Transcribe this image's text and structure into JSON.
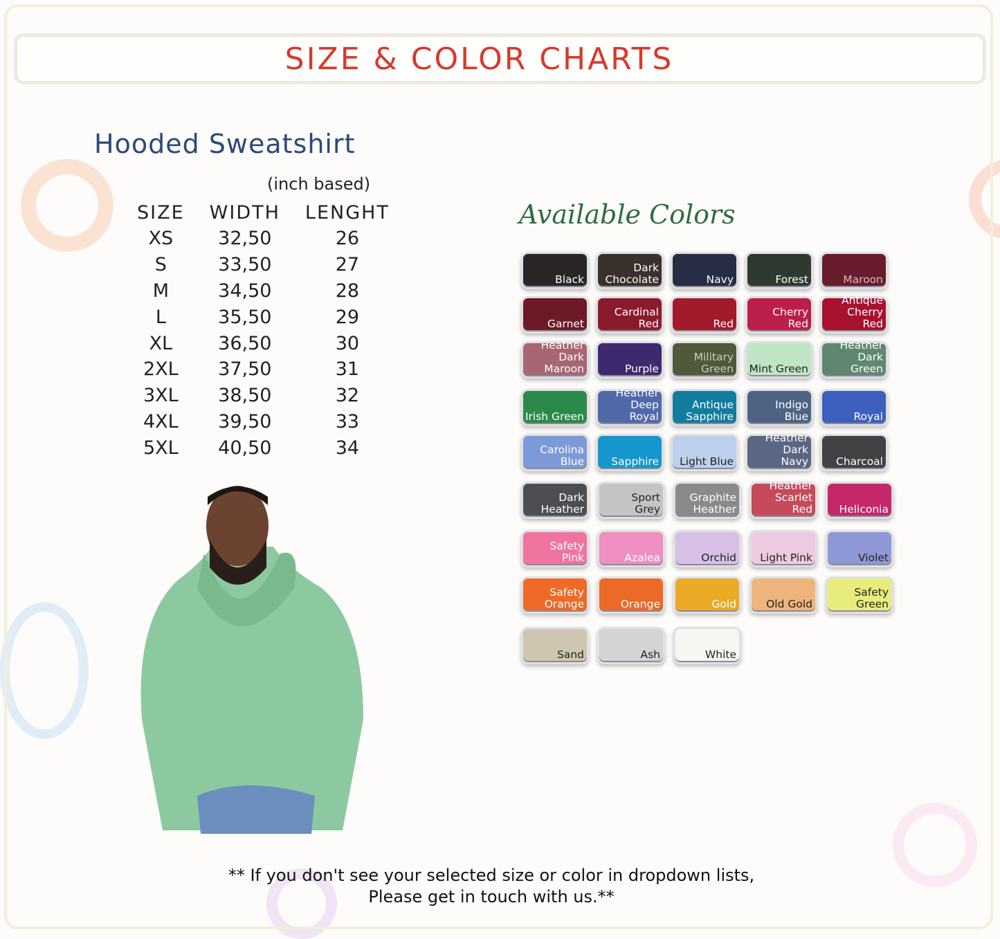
{
  "header": {
    "title": "SIZE & COLOR CHARTS"
  },
  "product": {
    "name": "Hooded Sweatshirt",
    "unit_note": "(inch based)"
  },
  "size_table": {
    "columns": [
      "SIZE",
      "WIDTH",
      "LENGHT"
    ],
    "rows": [
      [
        "XS",
        "32,50",
        "26"
      ],
      [
        "S",
        "33,50",
        "27"
      ],
      [
        "M",
        "34,50",
        "28"
      ],
      [
        "L",
        "35,50",
        "29"
      ],
      [
        "XL",
        "36,50",
        "30"
      ],
      [
        "2XL",
        "37,50",
        "31"
      ],
      [
        "3XL",
        "38,50",
        "32"
      ],
      [
        "4XL",
        "39,50",
        "33"
      ],
      [
        "5XL",
        "40,50",
        "34"
      ]
    ]
  },
  "colors_heading": "Available Colors",
  "colors": [
    {
      "label": "Black",
      "hex": "#2a2527",
      "text": "#fff"
    },
    {
      "label": "Dark\nChocolate",
      "hex": "#3a302c",
      "text": "#fff"
    },
    {
      "label": "Navy",
      "hex": "#262d44",
      "text": "#fff"
    },
    {
      "label": "Forest",
      "hex": "#2e3a30",
      "text": "#fff"
    },
    {
      "label": "Maroon",
      "hex": "#6a1c2c",
      "text": "#d8b8c0"
    },
    {
      "label": "Garnet",
      "hex": "#6e1a26",
      "text": "#fff"
    },
    {
      "label": "Cardinal Red",
      "hex": "#8a1b2d",
      "text": "#fff"
    },
    {
      "label": "Red",
      "hex": "#a11b2d",
      "text": "#fff"
    },
    {
      "label": "Cherry Red",
      "hex": "#bb1e48",
      "text": "#fff"
    },
    {
      "label": "Antique\nCherry Red",
      "hex": "#a8122f",
      "text": "#fff"
    },
    {
      "label": "Heather Dark\nMaroon",
      "hex": "#a86572",
      "text": "#fff"
    },
    {
      "label": "Purple",
      "hex": "#3d2a6e",
      "text": "#fff"
    },
    {
      "label": "Military Green",
      "hex": "#4e5a3a",
      "text": "#c9cfbd"
    },
    {
      "label": "Mint Green",
      "hex": "#bfe6c4",
      "text": "#222"
    },
    {
      "label": "Heather Dark\nGreen",
      "hex": "#5f8770",
      "text": "#fff"
    },
    {
      "label": "Irish Green",
      "hex": "#2b8a48",
      "text": "#fff"
    },
    {
      "label": "Heather\nDeep Royal",
      "hex": "#5069a8",
      "text": "#fff"
    },
    {
      "label": "Antique\nSapphire",
      "hex": "#117d9e",
      "text": "#fff"
    },
    {
      "label": "Indigo Blue",
      "hex": "#4e6384",
      "text": "#fff"
    },
    {
      "label": "Royal",
      "hex": "#3d5fbd",
      "text": "#fff"
    },
    {
      "label": "Carolina\nBlue",
      "hex": "#7c9ad8",
      "text": "#fff"
    },
    {
      "label": "Sapphire",
      "hex": "#1596cd",
      "text": "#fff"
    },
    {
      "label": "Light Blue",
      "hex": "#bcd0ec",
      "text": "#222"
    },
    {
      "label": "Heather Dark\nNavy",
      "hex": "#5a6684",
      "text": "#fff"
    },
    {
      "label": "Charcoal",
      "hex": "#424244",
      "text": "#fff"
    },
    {
      "label": "Dark\nHeather",
      "hex": "#4c4e52",
      "text": "#fff"
    },
    {
      "label": "Sport\nGrey",
      "hex": "#c4c4c4",
      "text": "#222"
    },
    {
      "label": "Graphite\nHeather",
      "hex": "#8a8a8c",
      "text": "#fff"
    },
    {
      "label": "Heather\nScarlet Red",
      "hex": "#c64a5a",
      "text": "#fff"
    },
    {
      "label": "Heliconia",
      "hex": "#c4286a",
      "text": "#fff"
    },
    {
      "label": "Safety\nPink",
      "hex": "#ef74a0",
      "text": "#fff"
    },
    {
      "label": "Azalea",
      "hex": "#ef8ec0",
      "text": "#fff"
    },
    {
      "label": "Orchid",
      "hex": "#d8bfe6",
      "text": "#222"
    },
    {
      "label": "Light Pink",
      "hex": "#eecae0",
      "text": "#222"
    },
    {
      "label": "Violet",
      "hex": "#8f98d6",
      "text": "#222"
    },
    {
      "label": "Safety\nOrange",
      "hex": "#ee6a26",
      "text": "#fff"
    },
    {
      "label": "Orange",
      "hex": "#ea6a26",
      "text": "#fff"
    },
    {
      "label": "Gold",
      "hex": "#eaaa26",
      "text": "#fff"
    },
    {
      "label": "Old Gold",
      "hex": "#eeb47c",
      "text": "#222"
    },
    {
      "label": "Safety\nGreen",
      "hex": "#e8ec7a",
      "text": "#222"
    },
    {
      "label": "Sand",
      "hex": "#cec6b0",
      "text": "#222"
    },
    {
      "label": "Ash",
      "hex": "#d4d4d4",
      "text": "#222"
    },
    {
      "label": "White",
      "hex": "#f6f6f2",
      "text": "#222"
    }
  ],
  "note": {
    "line1": "** If you don't see your selected size or color in dropdown lists,",
    "line2": "Please get in touch with us.**"
  }
}
